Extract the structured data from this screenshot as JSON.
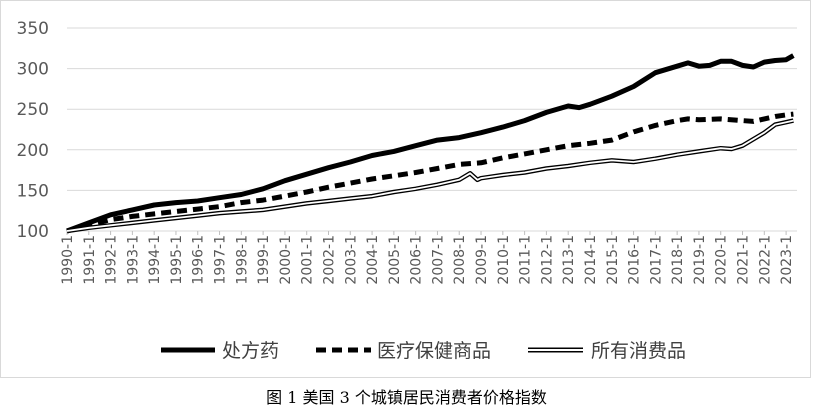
{
  "caption": "图 1 美国 3 个城镇居民消费者价格指数",
  "chart_data": {
    "type": "line",
    "title": "",
    "xlabel": "",
    "ylabel": "",
    "ylim": [
      100,
      350
    ],
    "yticks": [
      100,
      150,
      200,
      250,
      300,
      350
    ],
    "grid": true,
    "legend_position": "bottom",
    "x_tick_labels": [
      "1990-1",
      "1991-1",
      "1992-1",
      "1993-1",
      "1994-1",
      "1995-1",
      "1996-1",
      "1997-1",
      "1998-1",
      "1999-1",
      "2000-1",
      "2001-1",
      "2002-1",
      "2003-1",
      "2004-1",
      "2005-1",
      "2006-1",
      "2007-1",
      "2008-1",
      "2009-1",
      "2010-1",
      "2011-1",
      "2012-1",
      "2013-1",
      "2014-1",
      "2015-1",
      "2016-1",
      "2017-1",
      "2018-1",
      "2019-1",
      "2020-1",
      "2021-1",
      "2022-1",
      "2023-1"
    ],
    "series": [
      {
        "name": "处方药",
        "style": "solid-thick",
        "color": "#000000",
        "points": [
          [
            "1990-1",
            100
          ],
          [
            "1991-1",
            110
          ],
          [
            "1992-1",
            120
          ],
          [
            "1993-1",
            126
          ],
          [
            "1994-1",
            132
          ],
          [
            "1995-1",
            135
          ],
          [
            "1996-1",
            137
          ],
          [
            "1997-1",
            141
          ],
          [
            "1998-1",
            145
          ],
          [
            "1999-1",
            152
          ],
          [
            "2000-1",
            162
          ],
          [
            "2001-1",
            170
          ],
          [
            "2002-1",
            178
          ],
          [
            "2003-1",
            185
          ],
          [
            "2004-1",
            193
          ],
          [
            "2005-1",
            198
          ],
          [
            "2006-1",
            205
          ],
          [
            "2007-1",
            212
          ],
          [
            "2008-1",
            215
          ],
          [
            "2009-1",
            221
          ],
          [
            "2010-1",
            228
          ],
          [
            "2011-1",
            236
          ],
          [
            "2012-1",
            246
          ],
          [
            "2013-1",
            254
          ],
          [
            "2013-7",
            252
          ],
          [
            "2014-1",
            256
          ],
          [
            "2015-1",
            266
          ],
          [
            "2016-1",
            278
          ],
          [
            "2017-1",
            295
          ],
          [
            "2018-1",
            303
          ],
          [
            "2018-7",
            307
          ],
          [
            "2019-1",
            303
          ],
          [
            "2019-7",
            304
          ],
          [
            "2020-1",
            309
          ],
          [
            "2020-7",
            309
          ],
          [
            "2021-1",
            304
          ],
          [
            "2021-7",
            302
          ],
          [
            "2022-1",
            308
          ],
          [
            "2022-7",
            310
          ],
          [
            "2023-1",
            311
          ],
          [
            "2023-5",
            316
          ]
        ]
      },
      {
        "name": "医疗保健商品",
        "style": "dashed-thick",
        "color": "#000000",
        "points": [
          [
            "1990-1",
            100
          ],
          [
            "1991-1",
            107
          ],
          [
            "1992-1",
            114
          ],
          [
            "1993-1",
            118
          ],
          [
            "1994-1",
            121
          ],
          [
            "1995-1",
            124
          ],
          [
            "1996-1",
            127
          ],
          [
            "1997-1",
            130
          ],
          [
            "1998-1",
            135
          ],
          [
            "1999-1",
            138
          ],
          [
            "2000-1",
            143
          ],
          [
            "2001-1",
            148
          ],
          [
            "2002-1",
            154
          ],
          [
            "2003-1",
            159
          ],
          [
            "2004-1",
            164
          ],
          [
            "2005-1",
            168
          ],
          [
            "2006-1",
            172
          ],
          [
            "2007-1",
            177
          ],
          [
            "2008-1",
            182
          ],
          [
            "2009-1",
            184
          ],
          [
            "2010-1",
            190
          ],
          [
            "2011-1",
            195
          ],
          [
            "2012-1",
            200
          ],
          [
            "2013-1",
            205
          ],
          [
            "2014-1",
            208
          ],
          [
            "2015-1",
            212
          ],
          [
            "2016-1",
            222
          ],
          [
            "2017-1",
            230
          ],
          [
            "2018-1",
            236
          ],
          [
            "2018-7",
            238
          ],
          [
            "2019-1",
            237
          ],
          [
            "2020-1",
            238
          ],
          [
            "2021-1",
            236
          ],
          [
            "2021-7",
            235
          ],
          [
            "2022-1",
            238
          ],
          [
            "2022-7",
            241
          ],
          [
            "2023-1",
            243
          ],
          [
            "2023-5",
            244
          ]
        ]
      },
      {
        "name": "所有消费品",
        "style": "double",
        "color": "#000000",
        "points": [
          [
            "1990-1",
            100
          ],
          [
            "1991-1",
            104
          ],
          [
            "1992-1",
            107
          ],
          [
            "1993-1",
            110
          ],
          [
            "1994-1",
            113
          ],
          [
            "1995-1",
            116
          ],
          [
            "1996-1",
            119
          ],
          [
            "1997-1",
            122
          ],
          [
            "1998-1",
            124
          ],
          [
            "1999-1",
            126
          ],
          [
            "2000-1",
            130
          ],
          [
            "2001-1",
            134
          ],
          [
            "2002-1",
            137
          ],
          [
            "2003-1",
            140
          ],
          [
            "2004-1",
            143
          ],
          [
            "2005-1",
            148
          ],
          [
            "2006-1",
            152
          ],
          [
            "2007-1",
            157
          ],
          [
            "2008-1",
            163
          ],
          [
            "2008-7",
            171
          ],
          [
            "2008-11",
            163
          ],
          [
            "2009-1",
            165
          ],
          [
            "2010-1",
            169
          ],
          [
            "2011-1",
            172
          ],
          [
            "2012-1",
            177
          ],
          [
            "2013-1",
            180
          ],
          [
            "2014-1",
            184
          ],
          [
            "2015-1",
            187
          ],
          [
            "2016-1",
            185
          ],
          [
            "2017-1",
            189
          ],
          [
            "2018-1",
            194
          ],
          [
            "2019-1",
            198
          ],
          [
            "2020-1",
            202
          ],
          [
            "2020-7",
            201
          ],
          [
            "2021-1",
            205
          ],
          [
            "2021-7",
            213
          ],
          [
            "2022-1",
            221
          ],
          [
            "2022-7",
            231
          ],
          [
            "2023-1",
            234
          ],
          [
            "2023-5",
            236
          ]
        ]
      }
    ]
  }
}
